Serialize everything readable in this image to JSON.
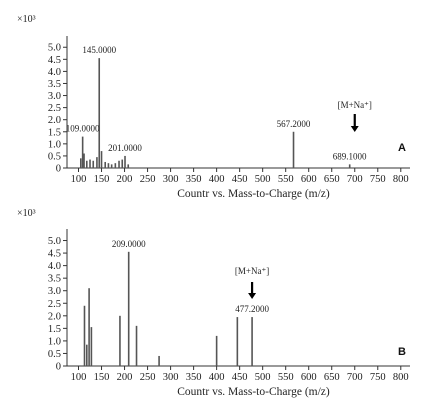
{
  "chart_data": [
    {
      "type": "bar",
      "panel_label": "A",
      "multiplier": "×10³",
      "xlabel": "Countr vs. Mass-to-Charge (m/z)",
      "xlim": [
        75,
        820
      ],
      "ylim": [
        0,
        5.3
      ],
      "xticks": [
        100,
        150,
        200,
        250,
        300,
        350,
        400,
        450,
        500,
        550,
        600,
        650,
        700,
        750,
        800
      ],
      "yticks": [
        "0",
        "0.5",
        "1.0",
        "1.5",
        "2.0",
        "2.5",
        "3.0",
        "3.5",
        "4.0",
        "4.5",
        "5.0"
      ],
      "peaks": [
        {
          "x": 105,
          "y": 0.4
        },
        {
          "x": 109,
          "y": 1.3
        },
        {
          "x": 112,
          "y": 0.6
        },
        {
          "x": 118,
          "y": 0.3
        },
        {
          "x": 125,
          "y": 0.35
        },
        {
          "x": 132,
          "y": 0.3
        },
        {
          "x": 140,
          "y": 0.45
        },
        {
          "x": 145,
          "y": 4.55
        },
        {
          "x": 150,
          "y": 0.7
        },
        {
          "x": 158,
          "y": 0.25
        },
        {
          "x": 165,
          "y": 0.2
        },
        {
          "x": 172,
          "y": 0.15
        },
        {
          "x": 180,
          "y": 0.2
        },
        {
          "x": 188,
          "y": 0.3
        },
        {
          "x": 195,
          "y": 0.35
        },
        {
          "x": 201,
          "y": 0.5
        },
        {
          "x": 208,
          "y": 0.15
        },
        {
          "x": 567,
          "y": 1.5
        },
        {
          "x": 689,
          "y": 0.15
        }
      ],
      "annotations": [
        {
          "x": 145,
          "y": 4.55,
          "label": "145.0000"
        },
        {
          "x": 109,
          "y": 1.3,
          "label": "109.0000"
        },
        {
          "x": 201,
          "y": 0.5,
          "label": "201.0000"
        },
        {
          "x": 567,
          "y": 1.5,
          "label": "567.2000"
        },
        {
          "x": 689,
          "y": 0.15,
          "label": "689.1000"
        }
      ],
      "adduct_label": "[M+Na⁺]",
      "adduct_x": 700
    },
    {
      "type": "bar",
      "panel_label": "B",
      "multiplier": "×10³",
      "xlabel": "Countr vs. Mass-to-Charge (m/z)",
      "xlim": [
        75,
        820
      ],
      "ylim": [
        0,
        5.3
      ],
      "xticks": [
        100,
        150,
        200,
        250,
        300,
        350,
        400,
        450,
        500,
        550,
        600,
        650,
        700,
        750,
        800
      ],
      "yticks": [
        "0",
        "0.5",
        "1.0",
        "1.5",
        "2.0",
        "2.5",
        "3.0",
        "3.5",
        "4.0",
        "4.5",
        "5.0"
      ],
      "peaks": [
        {
          "x": 113,
          "y": 2.4
        },
        {
          "x": 118,
          "y": 0.85
        },
        {
          "x": 123,
          "y": 3.1
        },
        {
          "x": 128,
          "y": 1.55
        },
        {
          "x": 190,
          "y": 2.0
        },
        {
          "x": 209,
          "y": 4.55
        },
        {
          "x": 226,
          "y": 1.6
        },
        {
          "x": 275,
          "y": 0.4
        },
        {
          "x": 400,
          "y": 1.2
        },
        {
          "x": 445,
          "y": 1.95
        },
        {
          "x": 477,
          "y": 1.95
        }
      ],
      "annotations": [
        {
          "x": 209,
          "y": 4.55,
          "label": "209.0000"
        },
        {
          "x": 477,
          "y": 1.95,
          "label": "477.2000"
        }
      ],
      "adduct_label": "[M+Na⁺]",
      "adduct_x": 477
    }
  ]
}
